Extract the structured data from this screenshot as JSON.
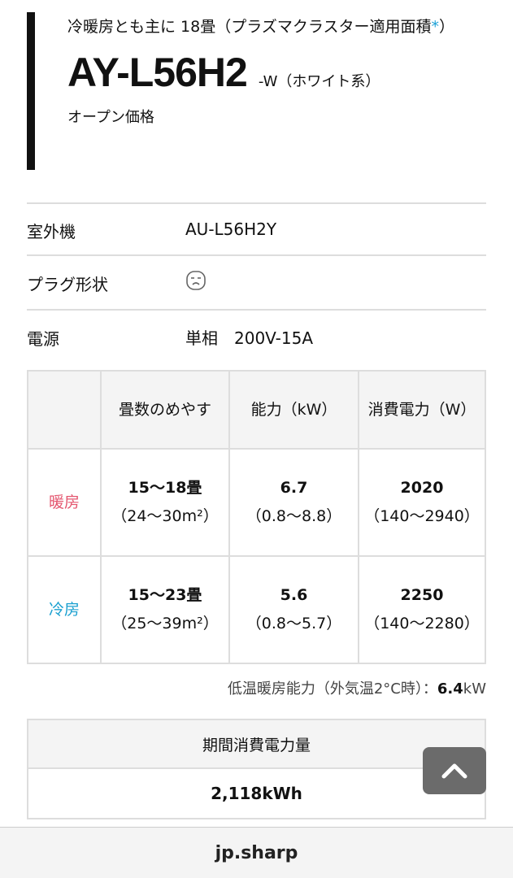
{
  "header": {
    "subtitle_main": "冷暖房とも主に 18畳（プラズマクラスター適用面積",
    "subtitle_asterisk": "*",
    "subtitle_end": "）",
    "model": "AY-L56H2",
    "variant": "-W（ホワイト系）",
    "price": "オープン価格"
  },
  "specs": [
    {
      "label": "室外機",
      "value": "AU-L56H2Y"
    },
    {
      "label": "プラグ形状",
      "icon": "plug-shape-icon"
    },
    {
      "label": "電源",
      "value": "単相　200V-15A"
    }
  ],
  "table": {
    "headers": [
      "",
      "畳数のめやす",
      "能力（kW）",
      "消費電力（W）"
    ],
    "rows": [
      {
        "mode": "暖房",
        "mode_color": "#e4566f",
        "cells": [
          [
            "15〜18畳",
            "（24〜30m²）"
          ],
          [
            "6.7",
            "（0.8〜8.8）"
          ],
          [
            "2020",
            "（140〜2940）"
          ]
        ]
      },
      {
        "mode": "冷房",
        "mode_color": "#1aa0d0",
        "cells": [
          [
            "15〜23畳",
            "（25〜39m²）"
          ],
          [
            "5.6",
            "（0.8〜5.7）"
          ],
          [
            "2250",
            "（140〜2280）"
          ]
        ]
      }
    ]
  },
  "low_temp": {
    "label": "低温暖房能力（外気温2°C時）：",
    "value": "6.4",
    "unit": "kW"
  },
  "annual": {
    "label": "期間消費電力量",
    "value": "2,118kWh"
  },
  "footer": {
    "domain": "jp.sharp"
  }
}
